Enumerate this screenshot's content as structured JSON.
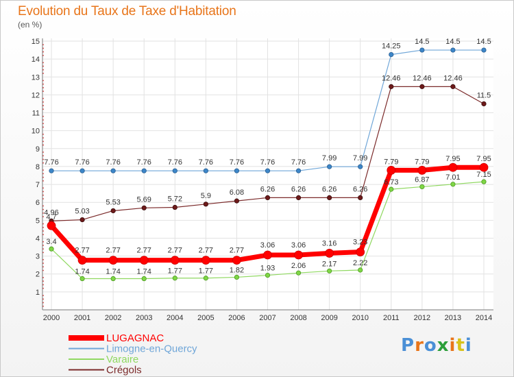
{
  "title": "Evolution du Taux de Taxe d'Habitation",
  "unit": "(en %)",
  "logo": {
    "text": "Proxiti"
  },
  "chart_data": {
    "type": "line",
    "x": [
      2000,
      2001,
      2002,
      2003,
      2004,
      2005,
      2006,
      2007,
      2008,
      2009,
      2010,
      2011,
      2012,
      2013,
      2014
    ],
    "ylim": [
      0,
      15
    ],
    "yticks": [
      1,
      2,
      3,
      4,
      5,
      6,
      7,
      8,
      9,
      10,
      11,
      12,
      13,
      14,
      15
    ],
    "grid": true,
    "legend_position": "bottom-left",
    "series": [
      {
        "name": "LUGAGNAC",
        "color": "#ff0000",
        "values": [
          4.7,
          2.77,
          2.77,
          2.77,
          2.77,
          2.77,
          2.77,
          3.06,
          3.06,
          3.16,
          3.23,
          7.79,
          7.79,
          7.95,
          7.95
        ],
        "labels": [
          "4.7",
          "2.77",
          "2.77",
          "2.77",
          "2.77",
          "2.77",
          "2.77",
          "3.06",
          "3.06",
          "3.16",
          "3.23",
          "7.79",
          "7.79",
          "7.95",
          "7.95"
        ]
      },
      {
        "name": "Limogne-en-Quercy",
        "color": "#6fa6d8",
        "values": [
          7.76,
          7.76,
          7.76,
          7.76,
          7.76,
          7.76,
          7.76,
          7.76,
          7.76,
          7.99,
          7.99,
          14.25,
          14.5,
          14.5,
          14.5
        ],
        "labels": [
          "7.76",
          "7.76",
          "7.76",
          "7.76",
          "7.76",
          "7.76",
          "7.76",
          "7.76",
          "7.76",
          "7.99",
          "7.99",
          "14.25",
          "14.5",
          "14.5",
          "14.5"
        ]
      },
      {
        "name": "Varaire",
        "color": "#8fd860",
        "values": [
          3.4,
          1.74,
          1.74,
          1.74,
          1.77,
          1.77,
          1.82,
          1.93,
          2.06,
          2.17,
          2.22,
          6.73,
          6.87,
          7.01,
          7.15
        ],
        "labels": [
          "3.4",
          "1.74",
          "1.74",
          "1.74",
          "1.77",
          "1.77",
          "1.82",
          "1.93",
          "2.06",
          "2.17",
          "2.22",
          "6.73",
          "6.87",
          "7.01",
          "7.15"
        ]
      },
      {
        "name": "Crégols",
        "color": "#7b2a2a",
        "values": [
          4.96,
          5.03,
          5.53,
          5.69,
          5.72,
          5.9,
          6.08,
          6.26,
          6.26,
          6.26,
          6.26,
          12.46,
          12.46,
          12.46,
          11.5
        ],
        "labels": [
          "4.96",
          "5.03",
          "5.53",
          "5.69",
          "5.72",
          "5.9",
          "6.08",
          "6.26",
          "6.26",
          "6.26",
          "6.26",
          "12.46",
          "12.46",
          "12.46",
          "11.5"
        ]
      }
    ]
  }
}
